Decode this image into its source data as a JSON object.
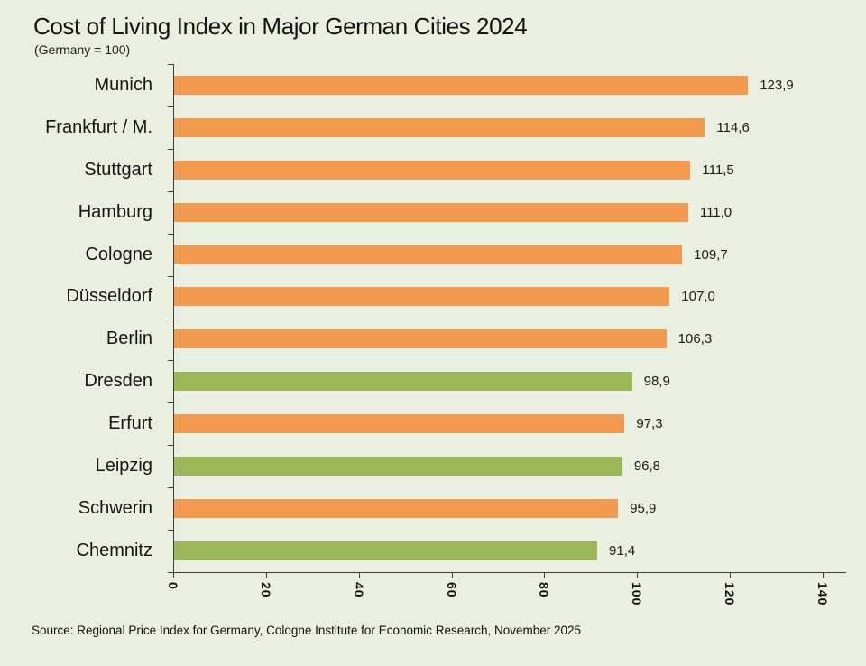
{
  "page": {
    "title": "Cost of Living Index in Major German Cities 2024",
    "subtitle": "(Germany = 100)",
    "source": "Source: Regional Price Index for Germany, Cologne Institute for Economic Research, November 2025"
  },
  "colors": {
    "background": "#e9f0e1",
    "orange": "#f29a4e",
    "green": "#9bb757",
    "axis": "#3d3d3d",
    "text": "#161616"
  },
  "chart_data": {
    "type": "bar",
    "orientation": "horizontal",
    "title": "Cost of Living Index in Major German Cities 2024",
    "subtitle": "(Germany = 100)",
    "categories": [
      "Munich",
      "Frankfurt / M.",
      "Stuttgart",
      "Hamburg",
      "Cologne",
      "Düsseldorf",
      "Berlin",
      "Dresden",
      "Erfurt",
      "Leipzig",
      "Schwerin",
      "Chemnitz"
    ],
    "values": [
      123.9,
      114.6,
      111.5,
      111.0,
      109.7,
      107.0,
      106.3,
      98.9,
      97.3,
      96.8,
      95.9,
      91.4
    ],
    "value_labels": [
      "123,9",
      "114,6",
      "111,5",
      "111,0",
      "109,7",
      "107,0",
      "106,3",
      "98,9",
      "97,3",
      "96,8",
      "95,9",
      "91,4"
    ],
    "bar_color_keys": [
      "orange",
      "orange",
      "orange",
      "orange",
      "orange",
      "orange",
      "orange",
      "green",
      "orange",
      "green",
      "orange",
      "green"
    ],
    "xlim": [
      0,
      140
    ],
    "x_ticks": [
      0,
      20,
      40,
      60,
      80,
      100,
      120,
      140
    ],
    "x_tick_labels": [
      "0",
      "20",
      "40",
      "60",
      "80",
      "100",
      "120",
      "140"
    ],
    "x_tick_label_rotation_deg": 90,
    "grid": false,
    "legend": null
  }
}
